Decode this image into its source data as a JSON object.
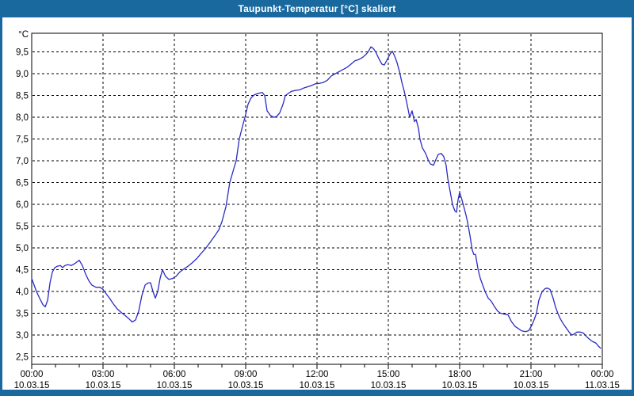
{
  "window": {
    "title": "Taupunkt-Temperatur [°C] skaliert"
  },
  "colors": {
    "titlebar_bg": "#1A699E",
    "title_text": "#FFFFFF",
    "frame": "#1A699E",
    "plot_background": "#FFFFFF",
    "grid": "#000000",
    "axis": "#000000",
    "tick_text": "#000000",
    "line": "#2B2BC4"
  },
  "chart_data": {
    "type": "line",
    "title": "Taupunkt-Temperatur [°C] skaliert",
    "y_unit_label": "°C",
    "grid": true,
    "legend_position": "none",
    "x_axis": {
      "range_hours": [
        0,
        24
      ],
      "gridline_every_hours": 3,
      "minor_tick_every_hours": 1,
      "tick_labels": [
        {
          "time": "00:00",
          "date": "10.03.15"
        },
        {
          "time": "03:00",
          "date": "10.03.15"
        },
        {
          "time": "06:00",
          "date": "10.03.15"
        },
        {
          "time": "09:00",
          "date": "10.03.15"
        },
        {
          "time": "12:00",
          "date": "10.03.15"
        },
        {
          "time": "15:00",
          "date": "10.03.15"
        },
        {
          "time": "18:00",
          "date": "10.03.15"
        },
        {
          "time": "21:00",
          "date": "10.03.15"
        },
        {
          "time": "00:00",
          "date": "11.03.15"
        }
      ]
    },
    "y_axis": {
      "range": [
        2.33,
        9.93
      ],
      "ticks": [
        {
          "value": 9.5,
          "label": "9,5"
        },
        {
          "value": 9.0,
          "label": "9,0"
        },
        {
          "value": 8.5,
          "label": "8,5"
        },
        {
          "value": 8.0,
          "label": "8,0"
        },
        {
          "value": 7.5,
          "label": "7,5"
        },
        {
          "value": 7.0,
          "label": "7,0"
        },
        {
          "value": 6.5,
          "label": "6,5"
        },
        {
          "value": 6.0,
          "label": "6,0"
        },
        {
          "value": 5.5,
          "label": "5,5"
        },
        {
          "value": 5.0,
          "label": "5,0"
        },
        {
          "value": 4.5,
          "label": "4,5"
        },
        {
          "value": 4.0,
          "label": "4,0"
        },
        {
          "value": 3.5,
          "label": "3,5"
        },
        {
          "value": 3.0,
          "label": "3,0"
        },
        {
          "value": 2.5,
          "label": "2,5"
        }
      ]
    },
    "series": [
      {
        "name": "Taupunkt-Temperatur",
        "color": "#2B2BC4",
        "points_hour_value": [
          [
            0,
            4.3
          ],
          [
            0.1,
            4.15
          ],
          [
            0.2,
            4.0
          ],
          [
            0.33,
            3.85
          ],
          [
            0.47,
            3.7
          ],
          [
            0.57,
            3.65
          ],
          [
            0.67,
            3.8
          ],
          [
            0.77,
            4.2
          ],
          [
            0.87,
            4.45
          ],
          [
            0.97,
            4.55
          ],
          [
            1.07,
            4.58
          ],
          [
            1.2,
            4.6
          ],
          [
            1.3,
            4.55
          ],
          [
            1.4,
            4.6
          ],
          [
            1.53,
            4.62
          ],
          [
            1.67,
            4.6
          ],
          [
            1.83,
            4.65
          ],
          [
            2,
            4.72
          ],
          [
            2.13,
            4.6
          ],
          [
            2.27,
            4.4
          ],
          [
            2.4,
            4.25
          ],
          [
            2.53,
            4.15
          ],
          [
            2.7,
            4.1
          ],
          [
            2.87,
            4.1
          ],
          [
            3,
            4.05
          ],
          [
            3.13,
            3.95
          ],
          [
            3.27,
            3.85
          ],
          [
            3.43,
            3.72
          ],
          [
            3.6,
            3.6
          ],
          [
            3.77,
            3.52
          ],
          [
            3.93,
            3.45
          ],
          [
            4.1,
            3.37
          ],
          [
            4.23,
            3.3
          ],
          [
            4.37,
            3.35
          ],
          [
            4.5,
            3.55
          ],
          [
            4.63,
            3.9
          ],
          [
            4.77,
            4.15
          ],
          [
            4.9,
            4.2
          ],
          [
            5,
            4.2
          ],
          [
            5.1,
            4.0
          ],
          [
            5.2,
            3.85
          ],
          [
            5.3,
            4.0
          ],
          [
            5.4,
            4.3
          ],
          [
            5.5,
            4.5
          ],
          [
            5.63,
            4.35
          ],
          [
            5.77,
            4.28
          ],
          [
            5.93,
            4.3
          ],
          [
            6.07,
            4.35
          ],
          [
            6.23,
            4.45
          ],
          [
            6.4,
            4.52
          ],
          [
            6.57,
            4.58
          ],
          [
            6.73,
            4.65
          ],
          [
            6.93,
            4.75
          ],
          [
            7.13,
            4.88
          ],
          [
            7.33,
            5.0
          ],
          [
            7.53,
            5.15
          ],
          [
            7.7,
            5.28
          ],
          [
            7.87,
            5.42
          ],
          [
            8,
            5.6
          ],
          [
            8.17,
            5.95
          ],
          [
            8.33,
            6.5
          ],
          [
            8.5,
            6.82
          ],
          [
            8.6,
            7.0
          ],
          [
            8.73,
            7.5
          ],
          [
            8.87,
            7.8
          ],
          [
            8.97,
            8.0
          ],
          [
            9.1,
            8.3
          ],
          [
            9.23,
            8.45
          ],
          [
            9.37,
            8.52
          ],
          [
            9.53,
            8.55
          ],
          [
            9.7,
            8.57
          ],
          [
            9.8,
            8.5
          ],
          [
            9.9,
            8.15
          ],
          [
            10.03,
            8.05
          ],
          [
            10.17,
            8.0
          ],
          [
            10.3,
            8.02
          ],
          [
            10.43,
            8.1
          ],
          [
            10.57,
            8.3
          ],
          [
            10.67,
            8.5
          ],
          [
            10.8,
            8.55
          ],
          [
            10.93,
            8.6
          ],
          [
            11.1,
            8.62
          ],
          [
            11.27,
            8.63
          ],
          [
            11.43,
            8.67
          ],
          [
            11.6,
            8.7
          ],
          [
            11.77,
            8.73
          ],
          [
            11.93,
            8.77
          ],
          [
            12.1,
            8.78
          ],
          [
            12.27,
            8.8
          ],
          [
            12.43,
            8.85
          ],
          [
            12.6,
            8.95
          ],
          [
            12.77,
            9.0
          ],
          [
            12.93,
            9.05
          ],
          [
            13.1,
            9.1
          ],
          [
            13.27,
            9.15
          ],
          [
            13.43,
            9.22
          ],
          [
            13.6,
            9.3
          ],
          [
            13.73,
            9.32
          ],
          [
            13.83,
            9.35
          ],
          [
            13.93,
            9.38
          ],
          [
            14.07,
            9.45
          ],
          [
            14.17,
            9.52
          ],
          [
            14.27,
            9.62
          ],
          [
            14.37,
            9.58
          ],
          [
            14.47,
            9.5
          ],
          [
            14.6,
            9.35
          ],
          [
            14.73,
            9.22
          ],
          [
            14.83,
            9.2
          ],
          [
            14.93,
            9.3
          ],
          [
            15.07,
            9.45
          ],
          [
            15.17,
            9.52
          ],
          [
            15.27,
            9.4
          ],
          [
            15.37,
            9.25
          ],
          [
            15.47,
            9.05
          ],
          [
            15.57,
            8.8
          ],
          [
            15.67,
            8.6
          ],
          [
            15.77,
            8.35
          ],
          [
            15.9,
            8.0
          ],
          [
            16,
            8.15
          ],
          [
            16.1,
            7.9
          ],
          [
            16.17,
            7.95
          ],
          [
            16.27,
            7.74
          ],
          [
            16.33,
            7.5
          ],
          [
            16.43,
            7.3
          ],
          [
            16.57,
            7.17
          ],
          [
            16.67,
            7.03
          ],
          [
            16.77,
            6.93
          ],
          [
            16.9,
            6.9
          ],
          [
            17,
            7.03
          ],
          [
            17.1,
            7.15
          ],
          [
            17.23,
            7.17
          ],
          [
            17.33,
            7.1
          ],
          [
            17.43,
            6.9
          ],
          [
            17.5,
            6.6
          ],
          [
            17.6,
            6.3
          ],
          [
            17.7,
            6.0
          ],
          [
            17.8,
            5.85
          ],
          [
            17.87,
            5.82
          ],
          [
            17.93,
            6.1
          ],
          [
            18,
            6.28
          ],
          [
            18.1,
            6.1
          ],
          [
            18.17,
            5.96
          ],
          [
            18.27,
            5.75
          ],
          [
            18.33,
            5.6
          ],
          [
            18.43,
            5.3
          ],
          [
            18.53,
            4.95
          ],
          [
            18.6,
            4.85
          ],
          [
            18.67,
            4.85
          ],
          [
            18.77,
            4.52
          ],
          [
            18.87,
            4.3
          ],
          [
            18.97,
            4.15
          ],
          [
            19.07,
            4.0
          ],
          [
            19.2,
            3.85
          ],
          [
            19.33,
            3.78
          ],
          [
            19.47,
            3.65
          ],
          [
            19.6,
            3.55
          ],
          [
            19.73,
            3.5
          ],
          [
            19.9,
            3.48
          ],
          [
            20.03,
            3.47
          ],
          [
            20.17,
            3.32
          ],
          [
            20.33,
            3.2
          ],
          [
            20.47,
            3.15
          ],
          [
            20.6,
            3.1
          ],
          [
            20.77,
            3.08
          ],
          [
            20.9,
            3.1
          ],
          [
            21.03,
            3.22
          ],
          [
            21.13,
            3.35
          ],
          [
            21.23,
            3.5
          ],
          [
            21.33,
            3.8
          ],
          [
            21.47,
            4.0
          ],
          [
            21.6,
            4.07
          ],
          [
            21.7,
            4.08
          ],
          [
            21.8,
            4.05
          ],
          [
            21.93,
            3.85
          ],
          [
            22.03,
            3.65
          ],
          [
            22.13,
            3.5
          ],
          [
            22.23,
            3.38
          ],
          [
            22.37,
            3.25
          ],
          [
            22.5,
            3.15
          ],
          [
            22.63,
            3.05
          ],
          [
            22.73,
            3.0
          ],
          [
            22.83,
            3.03
          ],
          [
            22.93,
            3.07
          ],
          [
            23.07,
            3.07
          ],
          [
            23.2,
            3.05
          ],
          [
            23.33,
            2.97
          ],
          [
            23.47,
            2.9
          ],
          [
            23.6,
            2.85
          ],
          [
            23.73,
            2.82
          ],
          [
            23.83,
            2.75
          ],
          [
            23.93,
            2.7
          ]
        ]
      }
    ]
  }
}
